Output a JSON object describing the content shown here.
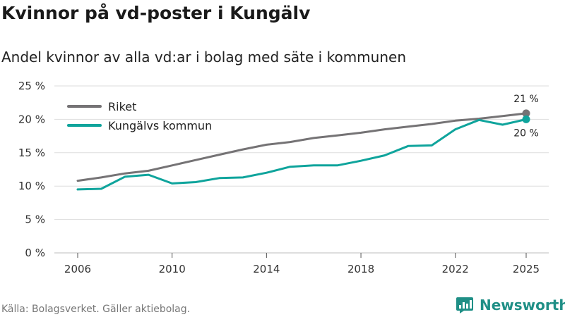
{
  "header": {
    "title": "Kvinnor på vd-poster i Kungälv",
    "subtitle": "Andel kvinnor av alla vd:ar i bolag med säte i kommunen"
  },
  "footer": {
    "source": "Källa: Bolagsverket. Gäller aktiebolag.",
    "brand": "Newsworthy"
  },
  "colors": {
    "riket": "#757375",
    "kommun": "#0fa49c",
    "grid": "#dddddd",
    "brand": "#1f8f86"
  },
  "chart_data": {
    "type": "line",
    "title": "Kvinnor på vd-poster i Kungälv",
    "subtitle": "Andel kvinnor av alla vd:ar i bolag med säte i kommunen",
    "xlabel": "",
    "ylabel": "",
    "x": [
      2006,
      2007,
      2008,
      2009,
      2010,
      2011,
      2012,
      2013,
      2014,
      2015,
      2016,
      2017,
      2018,
      2019,
      2020,
      2021,
      2022,
      2023,
      2024,
      2025
    ],
    "xticks": [
      2006,
      2010,
      2014,
      2018,
      2022,
      2025
    ],
    "yticks": [
      0,
      5,
      10,
      15,
      20,
      25
    ],
    "ytick_labels": [
      "0 %",
      "5 %",
      "10 %",
      "15 %",
      "20 %",
      "25 %"
    ],
    "xlim": [
      2006,
      2025
    ],
    "ylim": [
      0,
      25
    ],
    "grid": true,
    "legend_position": "top-left",
    "series": [
      {
        "name": "Riket",
        "color": "#757375",
        "values": [
          10.8,
          11.3,
          11.9,
          12.3,
          13.1,
          13.9,
          14.7,
          15.5,
          16.2,
          16.6,
          17.2,
          17.6,
          18.0,
          18.5,
          18.9,
          19.3,
          19.8,
          20.1,
          20.5,
          20.9
        ],
        "end_label": "21 %"
      },
      {
        "name": "Kungälvs kommun",
        "color": "#0fa49c",
        "values": [
          9.5,
          9.6,
          11.4,
          11.7,
          10.4,
          10.6,
          11.2,
          11.3,
          12.0,
          12.9,
          13.1,
          13.1,
          13.8,
          14.6,
          16.0,
          16.1,
          18.5,
          19.9,
          19.2,
          20.0
        ],
        "end_label": "20 %"
      }
    ]
  }
}
